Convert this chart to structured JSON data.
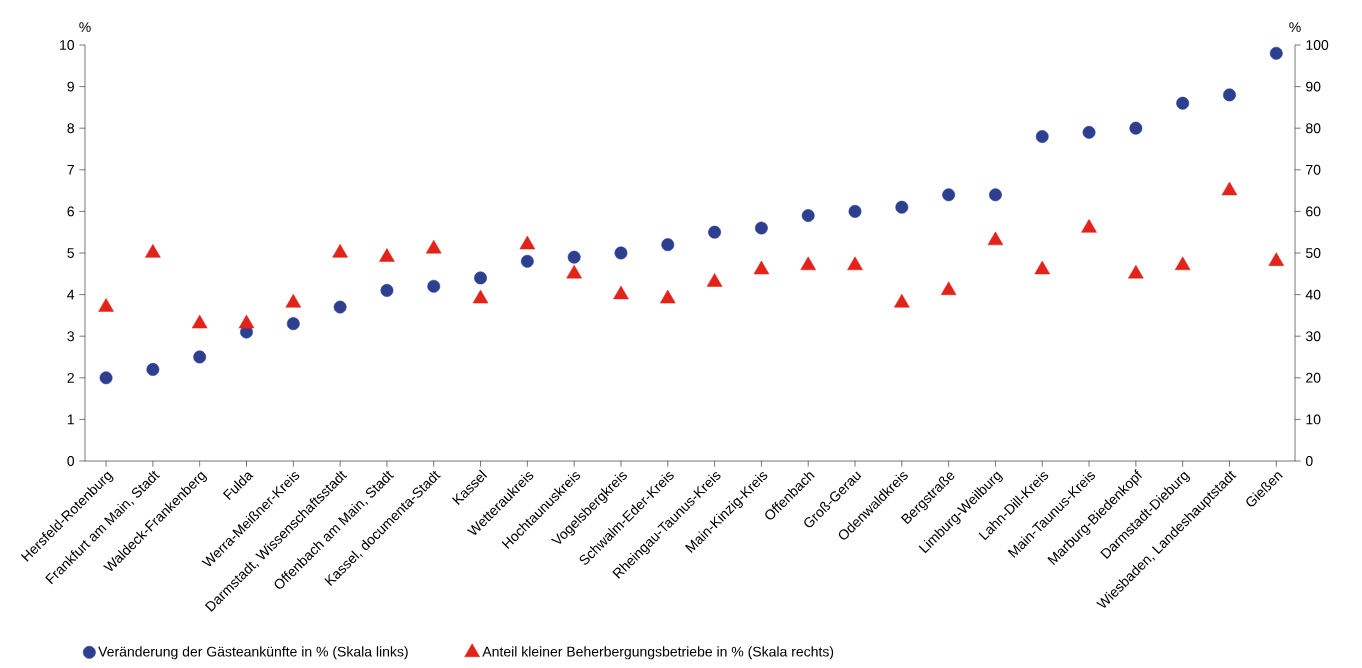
{
  "chart_data": {
    "type": "scatter",
    "categories": [
      "Hersfeld-Rotenburg",
      "Frankfurt am Main, Stadt",
      "Waldeck-Frankenberg",
      "Fulda",
      "Werra-Meißner-Kreis",
      "Darmstadt, Wissenschaftsstadt",
      "Offenbach am Main, Stadt",
      "Kassel, documenta-Stadt",
      "Kassel",
      "Wetteraukreis",
      "Hochtaunuskreis",
      "Vogelsbergkreis",
      "Schwalm-Eder-Kreis",
      "Rheingau-Taunus-Kreis",
      "Main-Kinzig-Kreis",
      "Offenbach",
      "Groß-Gerau",
      "Odenwaldkreis",
      "Bergstraße",
      "Limburg-Weilburg",
      "Lahn-Dill-Kreis",
      "Main-Taunus-Kreis",
      "Marburg-Biedenkopf",
      "Darmstadt-Dieburg",
      "Wiesbaden, Landeshauptstadt",
      "Gießen"
    ],
    "ylabel": "%",
    "y2label": "%",
    "ylim": [
      0,
      10
    ],
    "yticks": [
      0,
      1,
      2,
      3,
      4,
      5,
      6,
      7,
      8,
      9,
      10
    ],
    "y2lim": [
      0,
      100
    ],
    "y2ticks": [
      0,
      10,
      20,
      30,
      40,
      50,
      60,
      70,
      80,
      90,
      100
    ],
    "legend": "bottom",
    "grid": false,
    "series": [
      {
        "name": "Veränderung der Gästeankünfte in % (Skala links)",
        "color": "#2e3f8f",
        "marker": "circle",
        "values": [
          2.0,
          2.2,
          2.5,
          3.1,
          3.3,
          3.7,
          4.1,
          4.2,
          4.4,
          4.8,
          4.9,
          5.0,
          5.2,
          5.5,
          5.6,
          5.9,
          6.0,
          6.1,
          6.4,
          6.4,
          7.8,
          7.9,
          8.0,
          8.6,
          8.8,
          9.8
        ]
      },
      {
        "name": "Anteil  kleiner Beherbergungsbetriebe in % (Skala rechts)",
        "color": "#e2231a",
        "marker": "triangle",
        "axis": "y2",
        "values": [
          37,
          50,
          33,
          33,
          38,
          50,
          49,
          51,
          39,
          52,
          45,
          40,
          39,
          43,
          46,
          47,
          47,
          38,
          41,
          53,
          46,
          56,
          45,
          47,
          65,
          48
        ]
      }
    ]
  }
}
